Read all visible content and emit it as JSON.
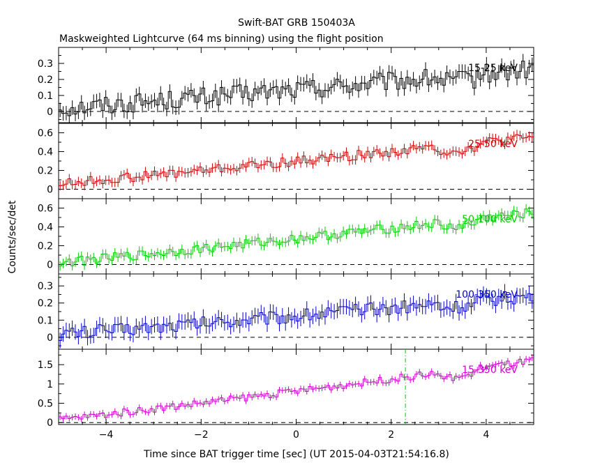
{
  "title": "Swift-BAT GRB 150403A",
  "subtitle": "Maskweighted Lightcurve (64 ms binning) using the flight position",
  "xlabel": "Time since BAT trigger time [sec] (UT 2015-04-03T21:54:16.8)",
  "ylabel": "Counts/sec/det",
  "chart_data": [
    {
      "type": "line",
      "series": [
        {
          "name": "15-25 keV",
          "color": "#000000",
          "start": 0.02,
          "end": 0.26,
          "noise": 0.06,
          "err": 0.045
        }
      ],
      "xlim": [
        -5,
        5
      ],
      "ylim": [
        -0.07,
        0.4
      ],
      "yticks": [
        0,
        0.1,
        0.2,
        0.3
      ],
      "xticks": [
        -4,
        -2,
        0,
        2,
        4
      ]
    },
    {
      "type": "line",
      "series": [
        {
          "name": "25-50 keV",
          "color": "#cc0000",
          "start": 0.06,
          "end": 0.55,
          "noise": 0.05,
          "err": 0.05
        }
      ],
      "xlim": [
        -5,
        5
      ],
      "ylim": [
        -0.1,
        0.7
      ],
      "yticks": [
        0,
        0.2,
        0.4,
        0.6
      ],
      "xticks": [
        -4,
        -2,
        0,
        2,
        4
      ]
    },
    {
      "type": "line",
      "series": [
        {
          "name": "50-100 keV",
          "color": "#00cc00",
          "start": 0.02,
          "end": 0.55,
          "noise": 0.05,
          "err": 0.05
        }
      ],
      "xlim": [
        -5,
        5
      ],
      "ylim": [
        -0.1,
        0.7
      ],
      "yticks": [
        0,
        0.2,
        0.4,
        0.6
      ],
      "xticks": [
        -4,
        -2,
        0,
        2,
        4
      ]
    },
    {
      "type": "line",
      "series": [
        {
          "name": "100-350 keV",
          "color": "#0000cc",
          "start": 0.02,
          "end": 0.24,
          "noise": 0.04,
          "err": 0.045
        }
      ],
      "xlim": [
        -5,
        5
      ],
      "ylim": [
        -0.07,
        0.37
      ],
      "yticks": [
        0,
        0.1,
        0.2,
        0.3
      ],
      "xticks": [
        -4,
        -2,
        0,
        2,
        4
      ]
    },
    {
      "type": "line",
      "series": [
        {
          "name": "15-350 keV",
          "color": "#cc00cc",
          "start": 0.08,
          "end": 1.6,
          "noise": 0.09,
          "err": 0.08
        }
      ],
      "xlim": [
        -5,
        5
      ],
      "ylim": [
        -0.05,
        1.9
      ],
      "yticks": [
        0,
        0.5,
        1,
        1.5
      ],
      "xticks": [
        -4,
        -2,
        0,
        2,
        4
      ],
      "vline": {
        "x": 2.3,
        "color": "#00cc00"
      }
    }
  ]
}
